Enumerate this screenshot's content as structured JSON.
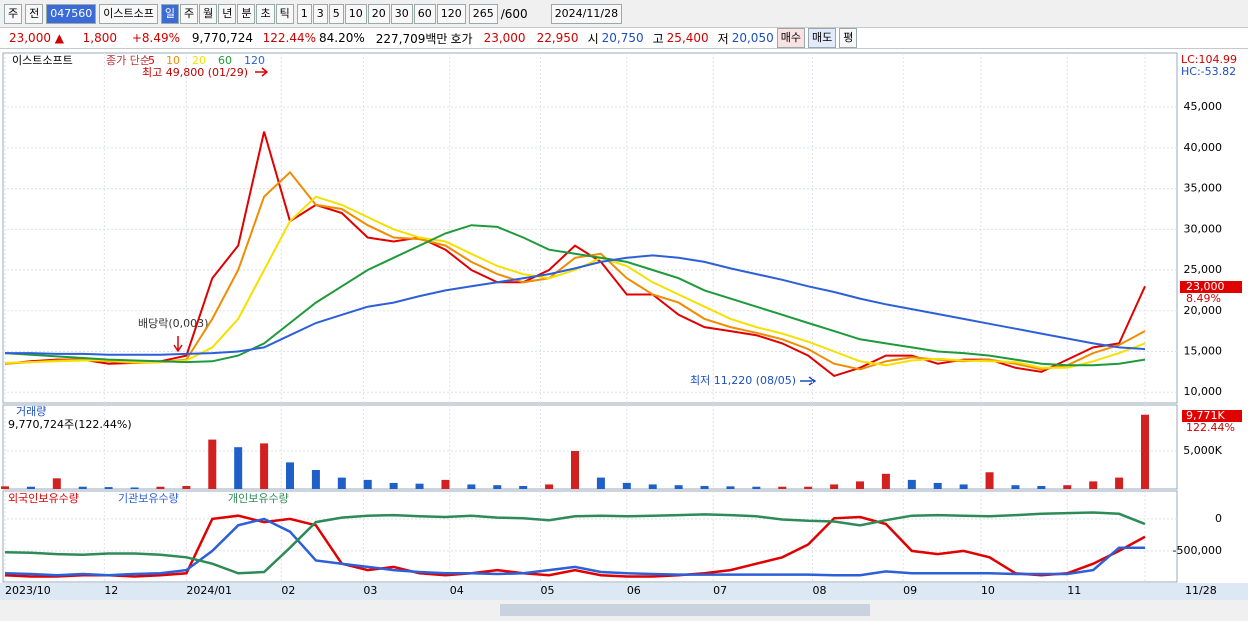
{
  "toolbar": {
    "period": "주",
    "prev": "전",
    "code": "047560",
    "name": "이스트소프",
    "tabs": [
      "일",
      "주",
      "월",
      "년",
      "분",
      "초",
      "틱"
    ],
    "intervals": [
      "1",
      "3",
      "5",
      "10",
      "20",
      "30",
      "60",
      "120"
    ],
    "count": "265",
    "max": "/600",
    "date": "2024/11/28"
  },
  "quote": {
    "price": "23,000 ▲",
    "change": "1,800",
    "rate": "+8.49%",
    "volume": "9,770,724",
    "volume_rate": "122.44%",
    "strength": "84.20%",
    "amount": "227,709백만",
    "ask_label": "호가",
    "ask": "23,000",
    "bid": "22,950",
    "open_label": "시",
    "open": "20,750",
    "high_label": "고",
    "high": "25,400",
    "low_label": "저",
    "low": "20,050",
    "buy": "매수",
    "sell": "매도",
    "avg": "평"
  },
  "chart_data": [
    {
      "type": "line",
      "title": "이스트소프트",
      "legend_label": "종가 단순",
      "x": [
        0,
        6,
        12,
        18,
        24,
        30,
        36,
        42,
        48,
        54,
        60,
        66,
        72,
        78,
        84,
        90,
        96,
        102,
        108,
        114,
        120,
        126,
        132,
        138,
        144,
        150,
        156,
        162,
        168,
        174,
        180,
        186,
        192,
        198,
        204,
        210,
        216,
        222,
        228,
        234,
        240,
        246,
        252,
        258,
        264
      ],
      "xlim": [
        0,
        264
      ],
      "xticks": [
        {
          "value": 0,
          "label": "2023/10"
        },
        {
          "value": 23,
          "label": "12"
        },
        {
          "value": 42,
          "label": "2024/01"
        },
        {
          "value": 64,
          "label": "02"
        },
        {
          "value": 83,
          "label": "03"
        },
        {
          "value": 103,
          "label": "04"
        },
        {
          "value": 124,
          "label": "05"
        },
        {
          "value": 144,
          "label": "06"
        },
        {
          "value": 164,
          "label": "07"
        },
        {
          "value": 187,
          "label": "08"
        },
        {
          "value": 208,
          "label": "09"
        },
        {
          "value": 226,
          "label": "10"
        },
        {
          "value": 246,
          "label": "11"
        },
        {
          "value": 264,
          "label": "11/28"
        }
      ],
      "ylim": [
        8800,
        51400
      ],
      "yticks": [
        {
          "value": 10000,
          "label": "10,000"
        },
        {
          "value": 15000,
          "label": "15,000"
        },
        {
          "value": 20000,
          "label": "20,000"
        },
        {
          "value": 25000,
          "label": "25,000"
        },
        {
          "value": 30000,
          "label": "30,000"
        },
        {
          "value": 35000,
          "label": "35,000"
        },
        {
          "value": 40000,
          "label": "40,000"
        },
        {
          "value": 45000,
          "label": "45,000"
        }
      ],
      "grid": true,
      "series": [
        {
          "name": "5",
          "color": "#e00000",
          "values": [
            13500,
            13800,
            14000,
            14000,
            13500,
            13600,
            13800,
            14500,
            24000,
            28000,
            42000,
            31000,
            33000,
            32000,
            29000,
            28500,
            29000,
            27500,
            25000,
            23500,
            23500,
            25000,
            28000,
            26000,
            22000,
            22000,
            19500,
            18000,
            17500,
            17000,
            16000,
            14500,
            12000,
            13000,
            14500,
            14500,
            13500,
            14000,
            14000,
            13000,
            12500,
            14000,
            15500,
            16000,
            23000
          ]
        },
        {
          "name": "10",
          "color": "#f08c00",
          "values": [
            13500,
            13700,
            13900,
            14000,
            13800,
            13600,
            13700,
            14000,
            19000,
            25000,
            34000,
            37000,
            33000,
            32500,
            30500,
            29000,
            28800,
            28000,
            26000,
            24500,
            23500,
            24000,
            26500,
            27000,
            24000,
            22000,
            21000,
            19000,
            18000,
            17300,
            16500,
            15300,
            13500,
            12800,
            13800,
            14300,
            14000,
            13800,
            14000,
            13500,
            12800,
            13300,
            14800,
            15800,
            17500
          ]
        },
        {
          "name": "20",
          "color": "#f5e000",
          "values": [
            13600,
            13700,
            13800,
            13900,
            13900,
            13700,
            13700,
            13900,
            15500,
            19000,
            25000,
            31000,
            34000,
            33000,
            31500,
            30000,
            29000,
            28500,
            27000,
            25500,
            24500,
            24000,
            25000,
            26500,
            25500,
            23500,
            22000,
            20500,
            19000,
            18000,
            17200,
            16200,
            15000,
            13800,
            13300,
            13900,
            14100,
            13900,
            13800,
            13700,
            13000,
            13000,
            13800,
            14800,
            16000
          ]
        },
        {
          "name": "60",
          "color": "#1e9a3a",
          "values": [
            14800,
            14600,
            14400,
            14200,
            14000,
            13900,
            13800,
            13700,
            13800,
            14500,
            16000,
            18500,
            21000,
            23000,
            25000,
            26500,
            28000,
            29500,
            30500,
            30300,
            29000,
            27500,
            27000,
            26500,
            26000,
            25000,
            24000,
            22500,
            21500,
            20500,
            19500,
            18500,
            17500,
            16500,
            16000,
            15500,
            15000,
            14800,
            14500,
            14000,
            13500,
            13300,
            13300,
            13500,
            14000
          ]
        },
        {
          "name": "120",
          "color": "#2d5fd8",
          "values": [
            14800,
            14800,
            14700,
            14700,
            14600,
            14600,
            14600,
            14700,
            14800,
            15000,
            15500,
            17000,
            18500,
            19500,
            20500,
            21000,
            21800,
            22500,
            23000,
            23500,
            24000,
            24500,
            25200,
            26000,
            26500,
            26800,
            26500,
            26000,
            25200,
            24500,
            23800,
            23000,
            22300,
            21500,
            20800,
            20200,
            19600,
            19000,
            18400,
            17800,
            17200,
            16600,
            16000,
            15500,
            15300
          ]
        }
      ],
      "annotations": [
        "최고 49,800 (01/29)",
        "배당락(0,003)",
        "최저 11,220 (08/05)"
      ],
      "lc": "LC:104.99",
      "hc": "HC:-53.82",
      "last_price": "23,000",
      "last_change": "8.49%"
    },
    {
      "type": "bar",
      "title": "거래량",
      "subtitle": "9,770,724주(122.44%)",
      "x": [
        0,
        6,
        12,
        18,
        24,
        30,
        36,
        42,
        48,
        54,
        60,
        66,
        72,
        78,
        84,
        90,
        96,
        102,
        108,
        114,
        120,
        126,
        132,
        138,
        144,
        150,
        156,
        162,
        168,
        174,
        180,
        186,
        192,
        198,
        204,
        210,
        216,
        222,
        228,
        234,
        240,
        246,
        252,
        258,
        264
      ],
      "values": [
        350000,
        300000,
        1400000,
        300000,
        250000,
        200000,
        300000,
        400000,
        6500000,
        5500000,
        6000000,
        3500000,
        2500000,
        1500000,
        1200000,
        800000,
        700000,
        1200000,
        600000,
        500000,
        400000,
        600000,
        5000000,
        1500000,
        800000,
        600000,
        500000,
        400000,
        350000,
        300000,
        300000,
        300000,
        600000,
        1000000,
        2000000,
        1200000,
        800000,
        600000,
        2200000,
        500000,
        400000,
        500000,
        1000000,
        1500000,
        9770724
      ],
      "ylim": [
        0,
        10300000
      ],
      "yticks": [
        {
          "value": 5000000,
          "label": "5,000K"
        }
      ],
      "up_color": "#d32020",
      "down_color": "#1f5fc8",
      "last_label": "9,771K",
      "last_rate": "122.44%"
    },
    {
      "type": "line",
      "x": [
        0,
        6,
        12,
        18,
        24,
        30,
        36,
        42,
        48,
        54,
        60,
        66,
        72,
        78,
        84,
        90,
        96,
        102,
        108,
        114,
        120,
        126,
        132,
        138,
        144,
        150,
        156,
        162,
        168,
        174,
        180,
        186,
        192,
        198,
        204,
        210,
        216,
        222,
        228,
        234,
        240,
        246,
        252,
        258,
        264
      ],
      "ylim": [
        -970000,
        420000
      ],
      "yticks": [
        0,
        {
          "value": -500000,
          "label": "-500,000"
        }
      ],
      "series": [
        {
          "name": "외국인보유수량",
          "color": "#e00000",
          "values": [
            -880000,
            -900000,
            -900000,
            -880000,
            -880000,
            -900000,
            -880000,
            -850000,
            0,
            50000,
            -50000,
            0,
            -100000,
            -700000,
            -800000,
            -750000,
            -850000,
            -880000,
            -850000,
            -800000,
            -850000,
            -880000,
            -800000,
            -880000,
            -900000,
            -900000,
            -880000,
            -850000,
            -800000,
            -700000,
            -600000,
            -400000,
            10000,
            30000,
            -80000,
            -500000,
            -550000,
            -500000,
            -600000,
            -850000,
            -880000,
            -850000,
            -700000,
            -500000,
            -280000
          ]
        },
        {
          "name": "기관보유수량",
          "color": "#2d5fd8",
          "values": [
            -850000,
            -860000,
            -880000,
            -860000,
            -880000,
            -860000,
            -850000,
            -800000,
            -500000,
            -100000,
            0,
            -200000,
            -650000,
            -700000,
            -750000,
            -800000,
            -830000,
            -850000,
            -850000,
            -860000,
            -850000,
            -800000,
            -750000,
            -830000,
            -850000,
            -860000,
            -870000,
            -870000,
            -870000,
            -870000,
            -870000,
            -870000,
            -880000,
            -880000,
            -820000,
            -850000,
            -850000,
            -850000,
            -850000,
            -860000,
            -860000,
            -860000,
            -800000,
            -450000,
            -450000
          ]
        },
        {
          "name": "개인보유수량",
          "color": "#2e8b57",
          "values": [
            -520000,
            -530000,
            -550000,
            -560000,
            -540000,
            -540000,
            -560000,
            -600000,
            -700000,
            -850000,
            -830000,
            -450000,
            -50000,
            20000,
            50000,
            60000,
            40000,
            30000,
            50000,
            20000,
            10000,
            -20000,
            40000,
            50000,
            40000,
            50000,
            60000,
            70000,
            60000,
            40000,
            -10000,
            -30000,
            -40000,
            -100000,
            -20000,
            50000,
            60000,
            50000,
            40000,
            60000,
            80000,
            90000,
            100000,
            80000,
            -80000
          ]
        }
      ]
    }
  ]
}
